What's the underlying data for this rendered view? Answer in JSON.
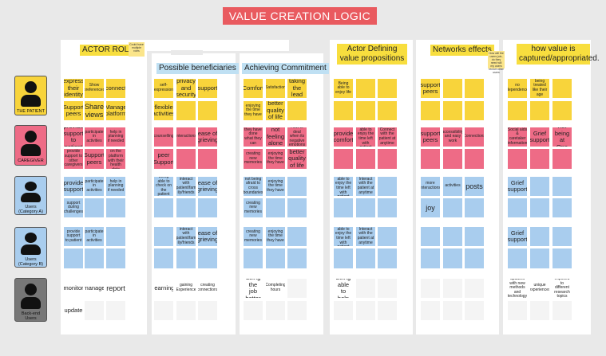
{
  "title": "VALUE CREATION LOGIC",
  "headers": {
    "actor_roles": "ACTOR ROLES",
    "beneficiaries": "Possible beneficiaries",
    "commitment": "Achieving Commitment",
    "defining": "Actor Defining value propositions",
    "networks": "Networks effects",
    "captured": "how value is captured/appropriated."
  },
  "side_notes": {
    "roles": "Could have multiple roles",
    "networks": "How will the users join, do they need will my users recruit other users"
  },
  "actors": [
    {
      "label": "THE PATIENT",
      "color": "#f8d43b"
    },
    {
      "label": "CAREGIVER",
      "color": "#ee6b86"
    },
    {
      "label": "Users (Category A)",
      "color": "#a9cdee"
    },
    {
      "label": "Users (Category B)",
      "color": "#a9cdee"
    },
    {
      "label": "Back-end Users",
      "color": "#777777"
    }
  ],
  "notes": {
    "roles": [
      "express their identity",
      "Show preferences",
      "connect",
      "Support peers",
      "Share views",
      "Manage platform",
      "provide support to patient",
      "participate in activities",
      "help in planning if needed",
      "provide support to other caregivers",
      "Support peers",
      "Register on the platform with their health data",
      "provide support",
      "participate in activities",
      "help in planning if needed",
      "support during challenges",
      "provide support to patient",
      "participate in activities",
      "monitor",
      "manage",
      "report",
      "update"
    ],
    "benef": [
      "self-expression",
      "privacy and security",
      "support",
      "flexible activities",
      "counselling",
      "interactions",
      "ease of grieving",
      "peer Support",
      "being able to check on the patient",
      "interact with patient/fam ily/friends",
      "ease of grieving",
      "interact with patient/fam ily/friends",
      "ease of grieving",
      "learning",
      "gaining Experience",
      "creating connections"
    ],
    "commit": [
      "Comfort",
      "Satisfaction",
      "taking the lead",
      "enjoying the time they have",
      "better quality of life",
      "they have done what they can",
      "not feeling alone",
      "How to deal when its negative emotions",
      "creating new memories",
      "enjoying the time they have",
      "better quality of life",
      "not being afraid to cross boundaries",
      "enjoying the time they have",
      "creating new memories",
      "creating new memories",
      "enjoying the time they have",
      "doing the job better",
      "Completing hours"
    ],
    "defining": [
      "Being able to enjoy life",
      "provide comfort",
      "Being able to enjoy the time left with patient",
      "Connect with the patient at anytime",
      "Being able to enjoy the time left with patient",
      "Interact with the patient at anytime",
      "Being able to enjoy the time left with patient",
      "Interact with the patient at anytime",
      "being able to help"
    ],
    "networks": [
      "support peers",
      "support peers",
      "accessibility and easy work",
      "Connections",
      "more interactions",
      "activities",
      "posts",
      "joy"
    ],
    "captured": [
      "no dependence",
      "being treated like their age",
      "Social aids & caretaker information",
      "Grief support",
      "not being at One",
      "Grief support",
      "Grief support",
      "updated with new methods and technology",
      "unique experiences",
      "exposed to different research topics"
    ]
  }
}
